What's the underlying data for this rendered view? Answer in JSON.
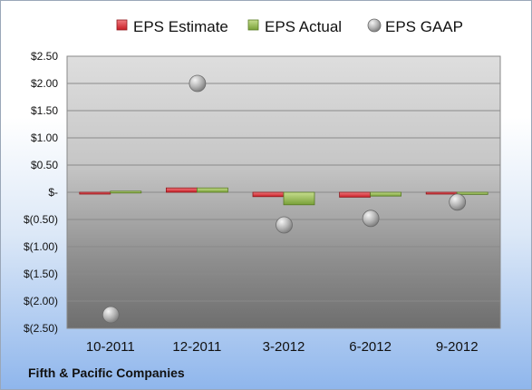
{
  "chart_data": {
    "type": "bar",
    "categories": [
      "10-2011",
      "12-2011",
      "3-2012",
      "6-2012",
      "9-2012"
    ],
    "series": [
      {
        "name": "EPS Estimate",
        "type": "bar",
        "color": "#d9262e",
        "values": [
          -0.03,
          0.08,
          -0.08,
          -0.09,
          -0.03
        ]
      },
      {
        "name": "EPS Actual",
        "type": "bar",
        "color": "#8cb547",
        "values": [
          0.02,
          0.08,
          -0.23,
          -0.07,
          -0.04
        ]
      },
      {
        "name": "EPS GAAP",
        "type": "scatter",
        "color": "#a9a9a9",
        "values": [
          -2.25,
          2.0,
          -0.6,
          -0.48,
          -0.18
        ]
      }
    ],
    "ylim": [
      -2.5,
      2.5
    ],
    "y_ticks": [
      2.5,
      2.0,
      1.5,
      1.0,
      0.5,
      0,
      -0.5,
      -1.0,
      -1.5,
      -2.0,
      -2.5
    ],
    "y_tick_labels": [
      "$2.50",
      "$2.00",
      "$1.50",
      "$1.00",
      "$0.50",
      "$-",
      "$(0.50)",
      "$(1.00)",
      "$(1.50)",
      "$(2.00)",
      "$(2.50)"
    ],
    "grid": true,
    "legend": "top"
  },
  "footer": {
    "company": "Fifth & Pacific Companies"
  }
}
